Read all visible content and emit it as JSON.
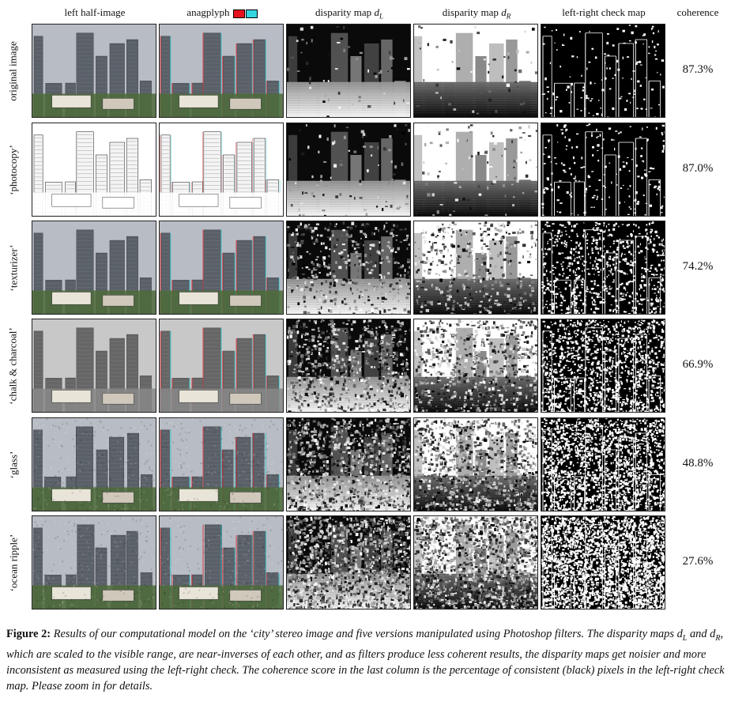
{
  "headers": {
    "left_half_image": "left half-image",
    "anaglyph": "anagplyph",
    "disparity_left_prefix": "disparity map ",
    "disparity_left_sym": "d",
    "disparity_left_sub": "L",
    "disparity_right_prefix": "disparity map ",
    "disparity_right_sym": "d",
    "disparity_right_sub": "R",
    "lr_check": "left-right check map",
    "coherence": "coherence"
  },
  "colors": {
    "anaglyph_red": "#e8121e",
    "anaglyph_cyan": "#33d6e0"
  },
  "rows": [
    {
      "label": "original image",
      "coherence": "87.3%"
    },
    {
      "label": "‘photocopy’",
      "coherence": "87.0%"
    },
    {
      "label": "‘texturizer’",
      "coherence": "74.2%"
    },
    {
      "label": "‘chalk & charcoal’",
      "coherence": "66.9%"
    },
    {
      "label": "‘glass’",
      "coherence": "48.8%"
    },
    {
      "label": "‘ocean ripple’",
      "coherence": "27.6%"
    }
  ],
  "caption": {
    "label": "Figure 2:",
    "text": " Results of our computational model on the ‘city’ stereo image and five versions manipulated using Photoshop filters. The disparity maps d_L and d_R, which are scaled to the visible range, are near-inverses of each other, and as filters produce less coherent results, the disparity maps get noisier and more inconsistent as measured using the left-right check. The coherence score in the last column is the percentage of consistent (black) pixels in the left-right check map. Please zoom in for details."
  }
}
